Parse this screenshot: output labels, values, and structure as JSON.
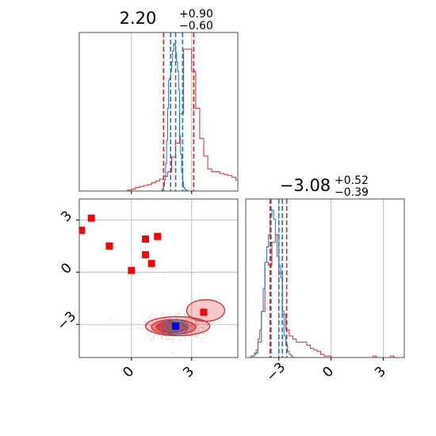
{
  "chart_data": {
    "type": "corner",
    "titles": {
      "x0": {
        "value": "2.20",
        "plus": "+0.90",
        "minus": "−0.60"
      },
      "x1": {
        "value": "−3.08",
        "plus": "+0.52",
        "minus": "−0.39"
      }
    },
    "x0_range": [
      -2.6,
      5.3
    ],
    "x1_range": [
      -4.9,
      4.2
    ],
    "x0_ticks": [
      {
        "v": 0,
        "label": "0"
      },
      {
        "v": 3,
        "label": "3"
      }
    ],
    "x1_ticks": [
      {
        "v": -3,
        "label": "−3"
      },
      {
        "v": 0,
        "label": "0"
      },
      {
        "v": 3,
        "label": "3"
      }
    ],
    "colors": {
      "red": "#d62728",
      "blue": "#1f77b4",
      "marker_red": "#ff0000",
      "marker_blue": "#0000ff"
    },
    "x0_quantile_lines": {
      "red": [
        1.6,
        3.1
      ],
      "blue": [
        2.2,
        1.95,
        2.55
      ]
    },
    "x1_quantile_lines": {
      "red": [
        -3.5,
        -2.55
      ],
      "blue": [
        -3.45,
        -3.0,
        -2.8
      ]
    },
    "hist_x0_red": {
      "edges_start": -0.2,
      "bin_width": 0.2,
      "counts": [
        1,
        2,
        4,
        5,
        6,
        7,
        9,
        11,
        13,
        16,
        21,
        37,
        52,
        84,
        154,
        154,
        130,
        90,
        57,
        38,
        24,
        21,
        21,
        19,
        18,
        17,
        15,
        12,
        9,
        7,
        5,
        3,
        2,
        1,
        1
      ]
    },
    "hist_x0_blue": {
      "edges_start": 1.5,
      "bin_width": 0.05,
      "counts": [
        1,
        3,
        6,
        12,
        30,
        55,
        90,
        120,
        122,
        130,
        140,
        152,
        160,
        158,
        150,
        140,
        130,
        110,
        60,
        40,
        20,
        10,
        4,
        2,
        1,
        1
      ]
    },
    "hist_x1_red": {
      "edges_start": -4.6,
      "bin_width": 0.2,
      "counts": [
        1,
        3,
        10,
        30,
        62,
        60,
        75,
        80,
        55,
        28,
        18,
        14,
        12,
        10,
        10,
        10,
        8,
        6,
        5,
        4,
        2,
        1,
        1,
        0,
        0,
        0,
        0,
        0,
        0,
        0,
        0,
        0,
        0,
        0,
        0,
        1,
        0,
        0,
        0,
        0,
        1
      ]
    },
    "hist_x1_blue": {
      "edges_start": -4.5,
      "bin_width": 0.1,
      "counts": [
        1,
        2,
        5,
        12,
        18,
        30,
        45,
        62,
        72,
        80,
        92,
        96,
        90,
        80,
        66,
        60,
        52,
        30,
        14,
        8,
        4,
        2,
        1
      ]
    },
    "red_markers": [
      {
        "x": -2.5,
        "y": 2.4
      },
      {
        "x": -2.0,
        "y": 3.1
      },
      {
        "x": -1.1,
        "y": 1.5
      },
      {
        "x": 0.0,
        "y": 0.1
      },
      {
        "x": 0.7,
        "y": 1.9
      },
      {
        "x": 0.7,
        "y": 1.0
      },
      {
        "x": 1.0,
        "y": 0.5
      },
      {
        "x": 1.3,
        "y": 2.05
      },
      {
        "x": 3.6,
        "y": -2.3
      }
    ],
    "blue_marker": {
      "x": 2.2,
      "y": -3.1
    },
    "red_contours": [
      {
        "cx": 2.3,
        "cy": -3.1,
        "rx": 1.6,
        "ry": 0.55,
        "fill_opacity": 0.25
      },
      {
        "cx": 2.1,
        "cy": -3.15,
        "rx": 1.1,
        "ry": 0.42,
        "fill_opacity": 0.45
      },
      {
        "cx": 2.0,
        "cy": -3.15,
        "rx": 0.75,
        "ry": 0.32,
        "fill_opacity": 0.65
      }
    ],
    "red_tail": {
      "cx": 3.7,
      "cy": -2.2,
      "rx": 0.95,
      "ry": 0.62
    },
    "blue_contours": [
      {
        "cx": 2.2,
        "cy": -3.15,
        "rx": 0.62,
        "ry": 0.42
      },
      {
        "cx": 2.2,
        "cy": -3.15,
        "rx": 0.42,
        "ry": 0.28
      },
      {
        "cx": 2.2,
        "cy": -3.15,
        "rx": 0.22,
        "ry": 0.15
      }
    ]
  }
}
